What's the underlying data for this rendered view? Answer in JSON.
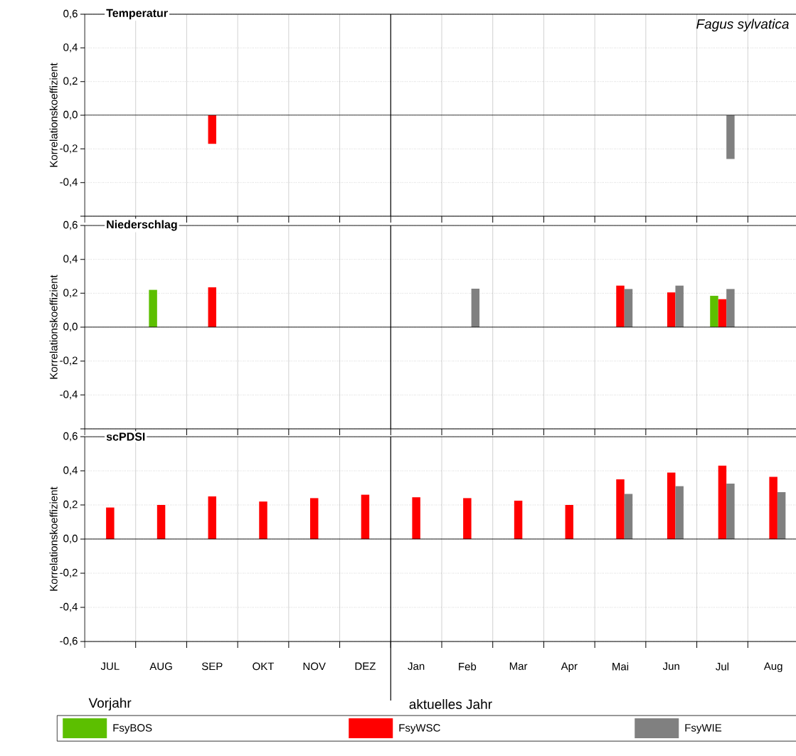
{
  "chart_data": [
    {
      "type": "bar",
      "title": "Temperatur",
      "ylabel": "Korrelationskoeffizient",
      "annotations": [
        "Fagus sylvatica"
      ],
      "categories": [
        null,
        null,
        null,
        null,
        null,
        null,
        null,
        null,
        null,
        null,
        null,
        null,
        null,
        null
      ],
      "series": [
        {
          "color": "#5cbf00",
          "values": [
            null,
            null,
            null,
            null,
            null,
            null,
            null,
            null,
            null,
            null,
            null,
            null,
            null,
            null
          ]
        },
        {
          "color": "#ff0000",
          "values": [
            null,
            null,
            -0.17,
            null,
            null,
            null,
            null,
            null,
            null,
            null,
            null,
            null,
            null,
            null
          ]
        },
        {
          "color": "#808080",
          "values": [
            null,
            null,
            null,
            null,
            null,
            null,
            null,
            null,
            null,
            null,
            null,
            null,
            -0.26,
            null
          ]
        }
      ],
      "ylim": [
        -0.6,
        0.6
      ],
      "yticks": [
        {
          "value": -0.6,
          "label": null
        },
        {
          "value": -0.4,
          "label": "-0,4"
        },
        {
          "value": -0.2,
          "label": "-0,2"
        },
        {
          "value": 0,
          "label": "0,0"
        },
        {
          "value": 0.2,
          "label": "0,2"
        },
        {
          "value": 0.4,
          "label": "0,4"
        },
        {
          "value": 0.6,
          "label": "0,6"
        }
      ],
      "grid": true,
      "tick_labels": "y"
    },
    {
      "type": "bar",
      "title": "Niederschlag",
      "ylabel": "Korrelationskoeffizient",
      "categories": [
        null,
        null,
        null,
        null,
        null,
        null,
        null,
        null,
        null,
        null,
        null,
        null,
        null,
        null
      ],
      "series": [
        {
          "color": "#5cbf00",
          "values": [
            null,
            0.22,
            null,
            null,
            null,
            null,
            null,
            null,
            null,
            null,
            null,
            null,
            0.185,
            null
          ]
        },
        {
          "color": "#ff0000",
          "values": [
            null,
            null,
            0.235,
            null,
            null,
            null,
            null,
            null,
            null,
            null,
            0.245,
            0.205,
            0.165,
            null
          ]
        },
        {
          "color": "#808080",
          "values": [
            null,
            null,
            null,
            null,
            null,
            null,
            null,
            0.227,
            null,
            null,
            0.225,
            0.245,
            0.225,
            null
          ]
        }
      ],
      "ylim": [
        -0.6,
        0.6
      ],
      "yticks": [
        {
          "value": -0.6,
          "label": null
        },
        {
          "value": -0.4,
          "label": "-0,4"
        },
        {
          "value": -0.2,
          "label": "-0,2"
        },
        {
          "value": 0,
          "label": "0,0"
        },
        {
          "value": 0.2,
          "label": "0,2"
        },
        {
          "value": 0.4,
          "label": "0,4"
        },
        {
          "value": 0.6,
          "label": "0,6"
        }
      ],
      "grid": true,
      "tick_labels": "y"
    },
    {
      "type": "bar",
      "title": "scPDSI",
      "ylabel": "Korrelationskoeffizient",
      "annotations": [
        "Vorjahr",
        "aktuelles Jahr"
      ],
      "categories": [
        "JUL",
        "AUG",
        "SEP",
        "OKT",
        "NOV",
        "DEZ",
        "Jan",
        "Feb",
        "Mar",
        "Apr",
        "Mai",
        "Jun",
        "Jul",
        "Aug"
      ],
      "series": [
        {
          "name": "FsyBOS",
          "color": "#5cbf00",
          "values": [
            null,
            null,
            null,
            null,
            null,
            null,
            null,
            null,
            null,
            null,
            null,
            null,
            null,
            null
          ]
        },
        {
          "name": "FsyWSC",
          "color": "#ff0000",
          "values": [
            0.185,
            0.2,
            0.25,
            0.22,
            0.24,
            0.26,
            0.245,
            0.24,
            0.225,
            0.2,
            0.35,
            0.39,
            0.43,
            0.365
          ]
        },
        {
          "name": "FsyWIE",
          "color": "#808080",
          "values": [
            null,
            null,
            null,
            null,
            null,
            null,
            null,
            null,
            null,
            null,
            0.265,
            0.31,
            0.325,
            0.275
          ]
        }
      ],
      "ylim": [
        -0.6,
        0.6
      ],
      "yticks": [
        {
          "value": -0.6,
          "label": "-0,6"
        },
        {
          "value": -0.4,
          "label": "-0,4"
        },
        {
          "value": -0.2,
          "label": "-0,2"
        },
        {
          "value": 0,
          "label": "0,0"
        },
        {
          "value": 0.2,
          "label": "0,2"
        },
        {
          "value": 0.4,
          "label": "0,4"
        },
        {
          "value": 0.6,
          "label": "0,6"
        }
      ],
      "grid": true,
      "legend": "bottom"
    }
  ]
}
